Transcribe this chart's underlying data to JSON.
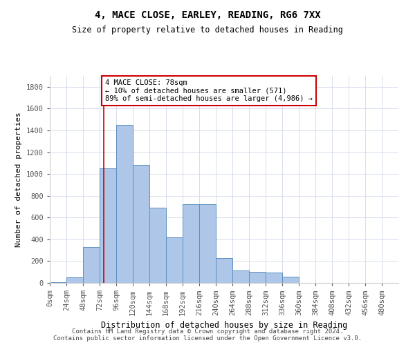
{
  "title1": "4, MACE CLOSE, EARLEY, READING, RG6 7XX",
  "title2": "Size of property relative to detached houses in Reading",
  "xlabel": "Distribution of detached houses by size in Reading",
  "ylabel": "Number of detached properties",
  "footer1": "Contains HM Land Registry data © Crown copyright and database right 2024.",
  "footer2": "Contains public sector information licensed under the Open Government Licence v3.0.",
  "bin_labels": [
    "0sqm",
    "24sqm",
    "48sqm",
    "72sqm",
    "96sqm",
    "120sqm",
    "144sqm",
    "168sqm",
    "192sqm",
    "216sqm",
    "240sqm",
    "264sqm",
    "288sqm",
    "312sqm",
    "336sqm",
    "360sqm",
    "384sqm",
    "408sqm",
    "432sqm",
    "456sqm",
    "480sqm"
  ],
  "bin_edges": [
    0,
    24,
    48,
    72,
    96,
    120,
    144,
    168,
    192,
    216,
    240,
    264,
    288,
    312,
    336,
    360,
    384,
    408,
    432,
    456,
    480
  ],
  "bar_heights": [
    5,
    50,
    330,
    1050,
    1450,
    1080,
    690,
    420,
    720,
    720,
    230,
    115,
    100,
    95,
    60,
    0,
    0,
    0,
    0,
    0,
    0
  ],
  "bar_color": "#aec6e8",
  "bar_edge_color": "#5b8fc3",
  "property_sqm": 78,
  "property_line_color": "#cc0000",
  "annotation_text": "4 MACE CLOSE: 78sqm\n← 10% of detached houses are smaller (571)\n89% of semi-detached houses are larger (4,986) →",
  "annotation_box_color": "#ffffff",
  "annotation_box_edge_color": "#cc0000",
  "ylim": [
    0,
    1900
  ],
  "yticks": [
    0,
    200,
    400,
    600,
    800,
    1000,
    1200,
    1400,
    1600,
    1800
  ],
  "background_color": "#ffffff",
  "grid_color": "#d0d8e8",
  "title1_fontsize": 10,
  "title2_fontsize": 8.5,
  "xlabel_fontsize": 8.5,
  "ylabel_fontsize": 8,
  "tick_fontsize": 7.5,
  "footer_fontsize": 6.5,
  "annot_fontsize": 7.5
}
